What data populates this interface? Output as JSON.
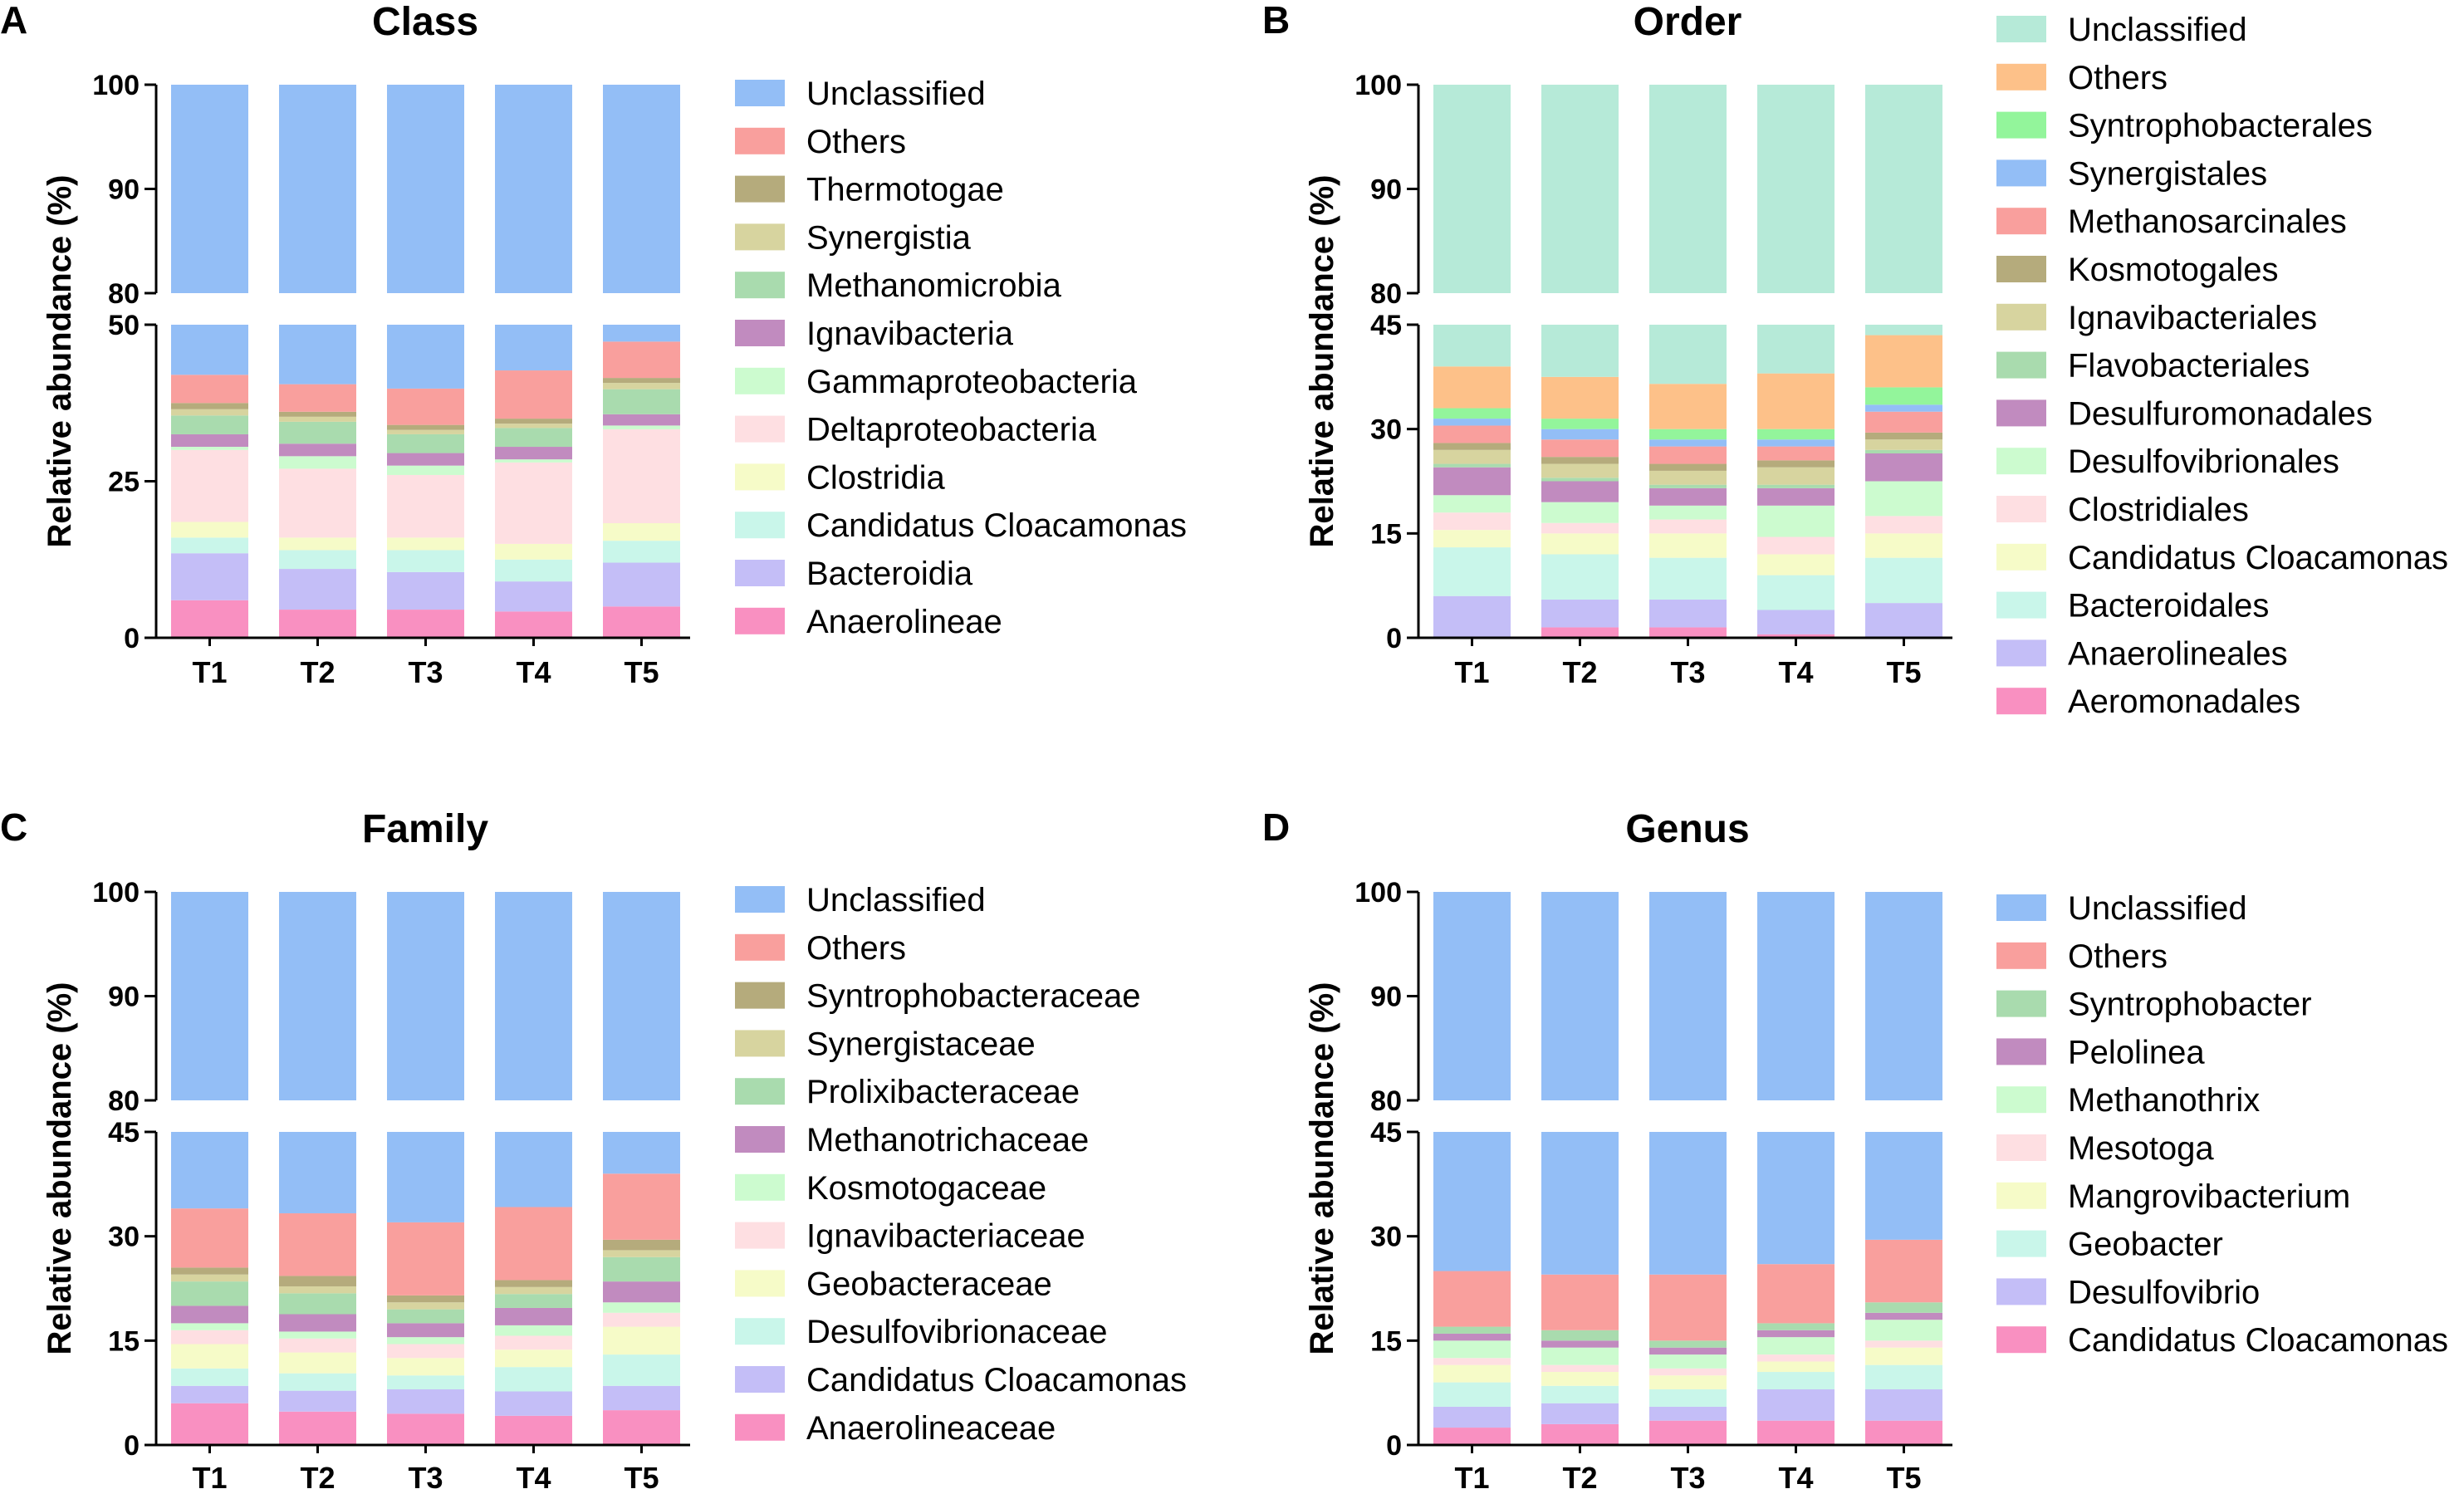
{
  "chart_data": [
    {
      "type": "bar",
      "stacked": true,
      "panel_letter": "A",
      "title": "Class",
      "ylabel": "Relative abundance (%)",
      "categories": [
        "T1",
        "T2",
        "T3",
        "T4",
        "T5"
      ],
      "axis_break": {
        "lower": [
          0,
          50
        ],
        "upper": [
          80,
          100
        ]
      },
      "ticks_lower": [
        "0",
        "25",
        "50"
      ],
      "ticks_upper": [
        "80",
        "90",
        "100"
      ],
      "series": [
        {
          "name": "Anaerolineae",
          "color": "#F990C1",
          "values": [
            6.0,
            4.5,
            4.5,
            4.2,
            5.0
          ]
        },
        {
          "name": "Bacteroidia",
          "color": "#C4BEF7",
          "values": [
            7.5,
            6.5,
            6.0,
            4.8,
            7.0
          ]
        },
        {
          "name": "Candidatus Cloacamonas",
          "color": "#C9F6EA",
          "values": [
            2.5,
            3.0,
            3.5,
            3.5,
            3.5
          ]
        },
        {
          "name": "Clostridia",
          "color": "#F6FBC8",
          "values": [
            2.5,
            2.0,
            2.0,
            2.5,
            2.8
          ]
        },
        {
          "name": "Deltaproteobacteria",
          "color": "#FEDFE2",
          "values": [
            11.5,
            11.0,
            10.0,
            13.0,
            15.0
          ]
        },
        {
          "name": "Gammaproteobacteria",
          "color": "#CCFBCF",
          "values": [
            0.5,
            2.0,
            1.5,
            0.5,
            0.6
          ]
        },
        {
          "name": "Ignavibacteria",
          "color": "#C18BBF",
          "values": [
            2.0,
            2.0,
            2.0,
            2.0,
            1.8
          ]
        },
        {
          "name": "Methanomicrobia",
          "color": "#A9DBAE",
          "values": [
            3.0,
            3.5,
            3.0,
            3.0,
            4.0
          ]
        },
        {
          "name": "Synergistia",
          "color": "#D7D49F",
          "values": [
            1.0,
            0.8,
            0.7,
            0.7,
            1.0
          ]
        },
        {
          "name": "Thermotogae",
          "color": "#B5AB7C",
          "values": [
            1.0,
            0.8,
            0.8,
            0.8,
            0.8
          ]
        },
        {
          "name": "Others",
          "color": "#F99F9D",
          "values": [
            4.5,
            4.4,
            5.8,
            7.7,
            5.8
          ]
        },
        {
          "name": "Unclassified",
          "color": "#93BEF6",
          "values": [
            58.0,
            59.5,
            60.2,
            57.3,
            52.7
          ]
        }
      ],
      "legend": [
        "Unclassified",
        "Others",
        "Thermotogae",
        "Synergistia",
        "Methanomicrobia",
        "Ignavibacteria",
        "Gammaproteobacteria",
        "Deltaproteobacteria",
        "Clostridia",
        "Candidatus Cloacamonas",
        "Bacteroidia",
        "Anaerolineae"
      ],
      "legend_position": "right"
    },
    {
      "type": "bar",
      "stacked": true,
      "panel_letter": "B",
      "title": "Order",
      "ylabel": "Relative abundance (%)",
      "categories": [
        "T1",
        "T2",
        "T3",
        "T4",
        "T5"
      ],
      "axis_break": {
        "lower": [
          0,
          45
        ],
        "upper": [
          80,
          100
        ]
      },
      "ticks_lower": [
        "0",
        "15",
        "30",
        "45"
      ],
      "ticks_upper": [
        "80",
        "90",
        "100"
      ],
      "series": [
        {
          "name": "Aeromonadales",
          "color": "#F990C1",
          "values": [
            0.0,
            1.5,
            1.5,
            0.5,
            0.0
          ]
        },
        {
          "name": "Anaerolineales",
          "color": "#C4BEF7",
          "values": [
            6.0,
            4.0,
            4.0,
            3.5,
            5.0
          ]
        },
        {
          "name": "Bacteroidales",
          "color": "#C9F6EA",
          "values": [
            7.0,
            6.5,
            6.0,
            5.0,
            6.5
          ]
        },
        {
          "name": "Candidatus Cloacamonas",
          "color": "#F6FBC8",
          "values": [
            2.5,
            3.0,
            3.5,
            3.0,
            3.5
          ]
        },
        {
          "name": "Clostridiales",
          "color": "#FEDFE2",
          "values": [
            2.5,
            1.5,
            2.0,
            2.5,
            2.5
          ]
        },
        {
          "name": "Desulfovibrionales",
          "color": "#CCFBCF",
          "values": [
            2.5,
            3.0,
            2.0,
            4.5,
            5.0
          ]
        },
        {
          "name": "Desulfuromonadales",
          "color": "#C18BBF",
          "values": [
            4.0,
            3.0,
            2.5,
            2.5,
            4.0
          ]
        },
        {
          "name": "Flavobacteriales",
          "color": "#A9DBAE",
          "values": [
            0.5,
            0.5,
            0.5,
            0.5,
            0.5
          ]
        },
        {
          "name": "Ignavibacteriales",
          "color": "#D7D49F",
          "values": [
            2.0,
            2.0,
            2.0,
            2.5,
            1.5
          ]
        },
        {
          "name": "Kosmotogales",
          "color": "#B5AB7C",
          "values": [
            1.0,
            1.0,
            1.0,
            1.0,
            1.0
          ]
        },
        {
          "name": "Methanosarcinales",
          "color": "#F99F9D",
          "values": [
            2.5,
            2.5,
            2.5,
            2.0,
            3.0
          ]
        },
        {
          "name": "Synergistales",
          "color": "#93BEF6",
          "values": [
            1.0,
            1.5,
            1.0,
            1.0,
            1.0
          ]
        },
        {
          "name": "Syntrophobacterales",
          "color": "#93F59B",
          "values": [
            1.5,
            1.5,
            1.5,
            1.5,
            2.5
          ]
        },
        {
          "name": "Others",
          "color": "#FDC189",
          "values": [
            6.0,
            6.0,
            6.5,
            8.0,
            7.5
          ]
        },
        {
          "name": "Unclassified",
          "color": "#B6EAD8",
          "values": [
            61.0,
            62.5,
            63.5,
            62.0,
            57.0
          ]
        }
      ],
      "legend": [
        "Unclassified",
        "Others",
        "Syntrophobacterales",
        "Synergistales",
        "Methanosarcinales",
        "Kosmotogales",
        "Ignavibacteriales",
        "Flavobacteriales",
        "Desulfuromonadales",
        "Desulfovibrionales",
        "Clostridiales",
        "Candidatus Cloacamonas",
        "Bacteroidales",
        "Anaerolineales",
        "Aeromonadales"
      ],
      "legend_position": "right"
    },
    {
      "type": "bar",
      "stacked": true,
      "panel_letter": "C",
      "title": "Family",
      "ylabel": "Relative abundance (%)",
      "categories": [
        "T1",
        "T2",
        "T3",
        "T4",
        "T5"
      ],
      "axis_break": {
        "lower": [
          0,
          45
        ],
        "upper": [
          80,
          100
        ]
      },
      "ticks_lower": [
        "0",
        "15",
        "30",
        "45"
      ],
      "ticks_upper": [
        "80",
        "90",
        "100"
      ],
      "series": [
        {
          "name": "Anaerolineaceae",
          "color": "#F990C1",
          "values": [
            6.0,
            4.8,
            4.5,
            4.2,
            5.0
          ]
        },
        {
          "name": "Candidatus Cloacamonas",
          "color": "#C4BEF7",
          "values": [
            2.5,
            3.0,
            3.5,
            3.5,
            3.5
          ]
        },
        {
          "name": "Desulfovibrionaceae",
          "color": "#C9F6EA",
          "values": [
            2.5,
            2.5,
            2.0,
            3.5,
            4.5
          ]
        },
        {
          "name": "Geobacteraceae",
          "color": "#F6FBC8",
          "values": [
            3.5,
            3.0,
            2.5,
            2.5,
            4.0
          ]
        },
        {
          "name": "Ignavibacteriaceae",
          "color": "#FEDFE2",
          "values": [
            2.0,
            2.0,
            2.0,
            2.0,
            2.0
          ]
        },
        {
          "name": "Kosmotogaceae",
          "color": "#CCFBCF",
          "values": [
            1.0,
            1.0,
            1.0,
            1.5,
            1.5
          ]
        },
        {
          "name": "Methanotrichaceae",
          "color": "#C18BBF",
          "values": [
            2.5,
            2.5,
            2.0,
            2.5,
            3.0
          ]
        },
        {
          "name": "Prolixibacteraceae",
          "color": "#A9DBAE",
          "values": [
            3.5,
            3.0,
            2.0,
            2.0,
            3.5
          ]
        },
        {
          "name": "Synergistaceae",
          "color": "#D7D49F",
          "values": [
            1.0,
            1.0,
            1.0,
            1.0,
            1.0
          ]
        },
        {
          "name": "Syntrophobacteraceae",
          "color": "#B5AB7C",
          "values": [
            1.0,
            1.5,
            1.0,
            1.0,
            1.5
          ]
        },
        {
          "name": "Others",
          "color": "#F99F9D",
          "values": [
            8.5,
            9.0,
            10.5,
            10.5,
            9.5
          ]
        },
        {
          "name": "Unclassified",
          "color": "#93BEF6",
          "values": [
            66.0,
            66.7,
            68.0,
            65.8,
            61.0
          ]
        }
      ],
      "legend": [
        "Unclassified",
        "Others",
        "Syntrophobacteraceae",
        "Synergistaceae",
        "Prolixibacteraceae",
        "Methanotrichaceae",
        "Kosmotogaceae",
        "Ignavibacteriaceae",
        "Geobacteraceae",
        "Desulfovibrionaceae",
        "Candidatus Cloacamonas",
        "Anaerolineaceae"
      ],
      "legend_position": "right"
    },
    {
      "type": "bar",
      "stacked": true,
      "panel_letter": "D",
      "title": "Genus",
      "ylabel": "Relative abundance (%)",
      "categories": [
        "T1",
        "T2",
        "T3",
        "T4",
        "T5"
      ],
      "axis_break": {
        "lower": [
          0,
          45
        ],
        "upper": [
          80,
          100
        ]
      },
      "ticks_lower": [
        "0",
        "15",
        "30",
        "45"
      ],
      "ticks_upper": [
        "80",
        "90",
        "100"
      ],
      "series": [
        {
          "name": "Candidatus Cloacamonas",
          "color": "#F990C1",
          "values": [
            2.5,
            3.0,
            3.5,
            3.5,
            3.5
          ]
        },
        {
          "name": "Desulfovibrio",
          "color": "#C4BEF7",
          "values": [
            3.0,
            3.0,
            2.0,
            4.5,
            4.5
          ]
        },
        {
          "name": "Geobacter",
          "color": "#C9F6EA",
          "values": [
            3.5,
            2.5,
            2.5,
            2.5,
            3.5
          ]
        },
        {
          "name": "Mangrovibacterium",
          "color": "#F6FBC8",
          "values": [
            2.5,
            2.0,
            2.0,
            1.5,
            2.5
          ]
        },
        {
          "name": "Mesotoga",
          "color": "#FEDFE2",
          "values": [
            1.0,
            1.0,
            1.0,
            1.0,
            1.0
          ]
        },
        {
          "name": "Methanothrix",
          "color": "#CCFBCF",
          "values": [
            2.5,
            2.5,
            2.0,
            2.5,
            3.0
          ]
        },
        {
          "name": "Pelolinea",
          "color": "#C18BBF",
          "values": [
            1.0,
            1.0,
            1.0,
            1.0,
            1.0
          ]
        },
        {
          "name": "Syntrophobacter",
          "color": "#A9DBAE",
          "values": [
            1.0,
            1.5,
            1.0,
            1.0,
            1.5
          ]
        },
        {
          "name": "Others",
          "color": "#F99F9D",
          "values": [
            8.0,
            8.0,
            9.5,
            8.5,
            9.0
          ]
        },
        {
          "name": "Unclassified",
          "color": "#93BEF6",
          "values": [
            75.0,
            75.5,
            75.5,
            74.0,
            70.5
          ]
        }
      ],
      "legend": [
        "Unclassified",
        "Others",
        "Syntrophobacter",
        "Pelolinea",
        "Methanothrix",
        "Mesotoga",
        "Mangrovibacterium",
        "Geobacter",
        "Desulfovibrio",
        "Candidatus Cloacamonas"
      ],
      "legend_position": "right"
    }
  ]
}
